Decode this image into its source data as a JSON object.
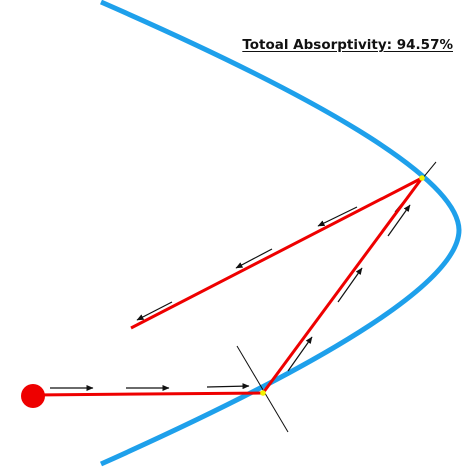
{
  "title_label": "Totoal Absorptivity: 94.57%",
  "colors": {
    "mirror": "#1ea0eb",
    "ray": "#ee0000",
    "source": "#ee0000",
    "hit_marker": "#f2f200",
    "arrow": "#111111",
    "normal": "#111111"
  },
  "elements": {
    "mirror": "parabolic-mirror-curve",
    "source": "light-source-dot",
    "rays": [
      "incident-ray",
      "first-reflected-ray",
      "second-reflected-ray"
    ],
    "hit_points": [
      "first-hit-point",
      "second-hit-point"
    ],
    "normals": [
      "first-hit-normal",
      "second-hit-normal"
    ]
  }
}
